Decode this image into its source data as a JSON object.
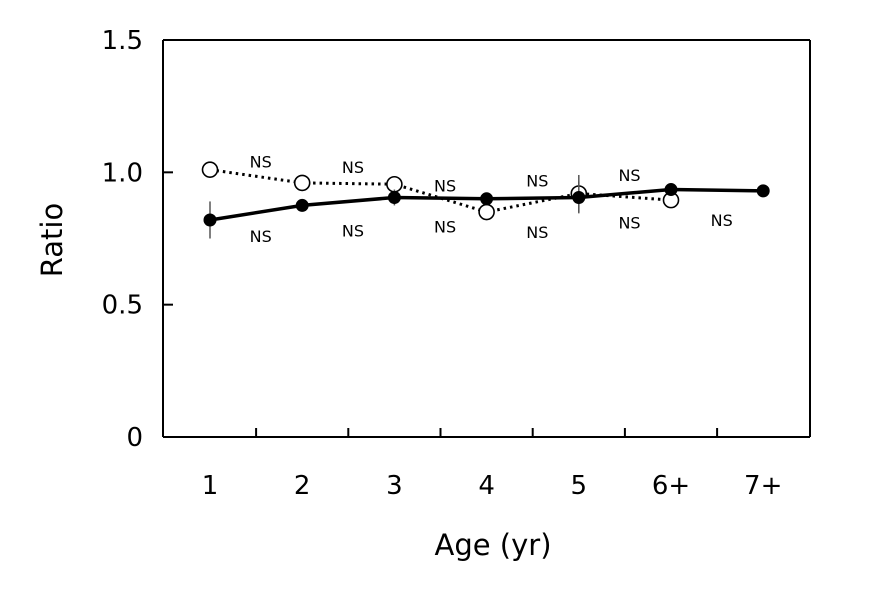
{
  "chart_data": {
    "type": "line",
    "title": "",
    "xlabel": "Age (yr)",
    "ylabel": "Ratio",
    "ylim": [
      0,
      1.5
    ],
    "yticks": [
      "0",
      "0.5",
      "1.0",
      "1.5"
    ],
    "categories": [
      "1",
      "2",
      "3",
      "4",
      "5",
      "6+",
      "7+"
    ],
    "grid": false,
    "legend": "none",
    "series": [
      {
        "marker": "open-circle",
        "line_style": "dotted",
        "color": "#000000",
        "x": [
          1,
          2,
          3,
          4,
          5,
          6
        ],
        "values": [
          1.01,
          0.96,
          0.955,
          0.85,
          0.92,
          0.895
        ],
        "error": [
          0,
          0,
          0.03,
          0,
          0.07,
          0
        ]
      },
      {
        "marker": "filled-circle",
        "line_style": "solid",
        "color": "#000000",
        "x": [
          1,
          2,
          3,
          4,
          5,
          6,
          7
        ],
        "values": [
          0.82,
          0.875,
          0.905,
          0.9,
          0.905,
          0.935,
          0.93
        ],
        "error": [
          0.07,
          0,
          0.03,
          0,
          0.06,
          0,
          0
        ]
      }
    ],
    "annotations": [
      {
        "text": "NS",
        "x": 1.55,
        "y": 1.04
      },
      {
        "text": "NS",
        "x": 2.55,
        "y": 1.02
      },
      {
        "text": "NS",
        "x": 3.55,
        "y": 0.95
      },
      {
        "text": "NS",
        "x": 4.55,
        "y": 0.97
      },
      {
        "text": "NS",
        "x": 5.55,
        "y": 0.99
      },
      {
        "text": "NS",
        "x": 1.55,
        "y": 0.76
      },
      {
        "text": "NS",
        "x": 2.55,
        "y": 0.78
      },
      {
        "text": "NS",
        "x": 3.55,
        "y": 0.795
      },
      {
        "text": "NS",
        "x": 4.55,
        "y": 0.775
      },
      {
        "text": "NS",
        "x": 5.55,
        "y": 0.81
      },
      {
        "text": "NS",
        "x": 6.55,
        "y": 0.82
      }
    ]
  }
}
